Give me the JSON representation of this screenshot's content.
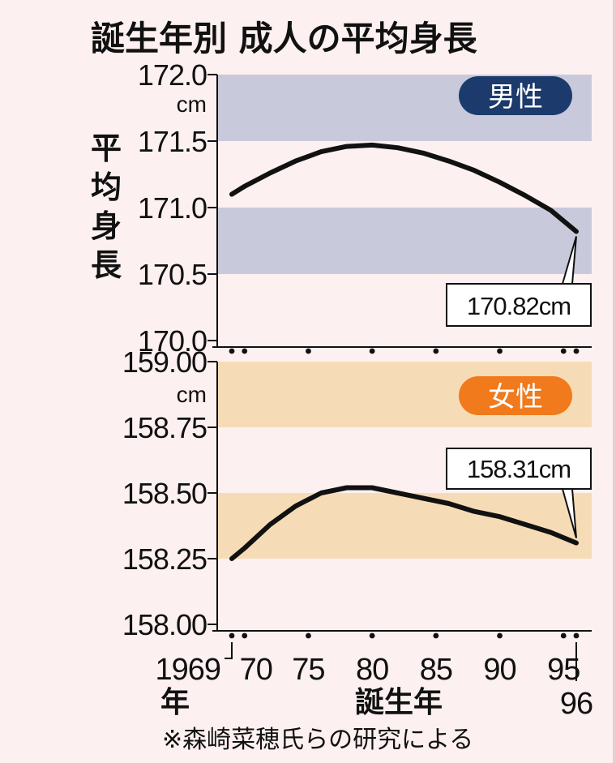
{
  "title": "誕生年別  成人の平均身長",
  "y_axis_title": "平均身長",
  "x_axis_title": "誕生年",
  "footnote": "※森崎菜穂氏らの研究による",
  "colors": {
    "male_badge": "#1c3a6b",
    "female_badge": "#f07a1c",
    "male_band": "#c9c9dc",
    "female_band": "#f6dcb6",
    "line": "#111111"
  },
  "chart_data": [
    {
      "type": "line",
      "panel": "male",
      "badge": "男性",
      "unit": "cm",
      "ylim": [
        170.0,
        172.0
      ],
      "yticks": [
        "172.0",
        "171.5",
        "171.0",
        "170.5",
        "170.0"
      ],
      "bands": [
        [
          171.5,
          172.0
        ],
        [
          170.5,
          171.0
        ]
      ],
      "x": [
        1969,
        1970,
        1972,
        1974,
        1976,
        1978,
        1980,
        1982,
        1984,
        1986,
        1988,
        1990,
        1992,
        1994,
        1996
      ],
      "series": [
        {
          "values": [
            171.1,
            171.16,
            171.26,
            171.35,
            171.42,
            171.46,
            171.47,
            171.45,
            171.41,
            171.35,
            171.28,
            171.19,
            171.09,
            170.98,
            170.82
          ]
        }
      ],
      "callout": "170.82cm"
    },
    {
      "type": "line",
      "panel": "female",
      "badge": "女性",
      "unit": "cm",
      "ylim": [
        158.0,
        159.0
      ],
      "yticks": [
        "159.00",
        "158.75",
        "158.50",
        "158.25",
        "158.00"
      ],
      "bands": [
        [
          158.75,
          159.0
        ],
        [
          158.25,
          158.5
        ]
      ],
      "x": [
        1969,
        1970,
        1972,
        1974,
        1976,
        1978,
        1980,
        1982,
        1984,
        1986,
        1988,
        1990,
        1992,
        1994,
        1996
      ],
      "series": [
        {
          "values": [
            158.25,
            158.29,
            158.38,
            158.45,
            158.5,
            158.52,
            158.52,
            158.5,
            158.48,
            158.46,
            158.43,
            158.41,
            158.38,
            158.35,
            158.31
          ]
        }
      ],
      "callout": "158.31cm"
    }
  ],
  "x_axis": {
    "first_label": "1969",
    "first_label_suffix": "年",
    "tick_labels": [
      "70",
      "75",
      "80",
      "85",
      "90",
      "95"
    ],
    "last_label": "96"
  }
}
